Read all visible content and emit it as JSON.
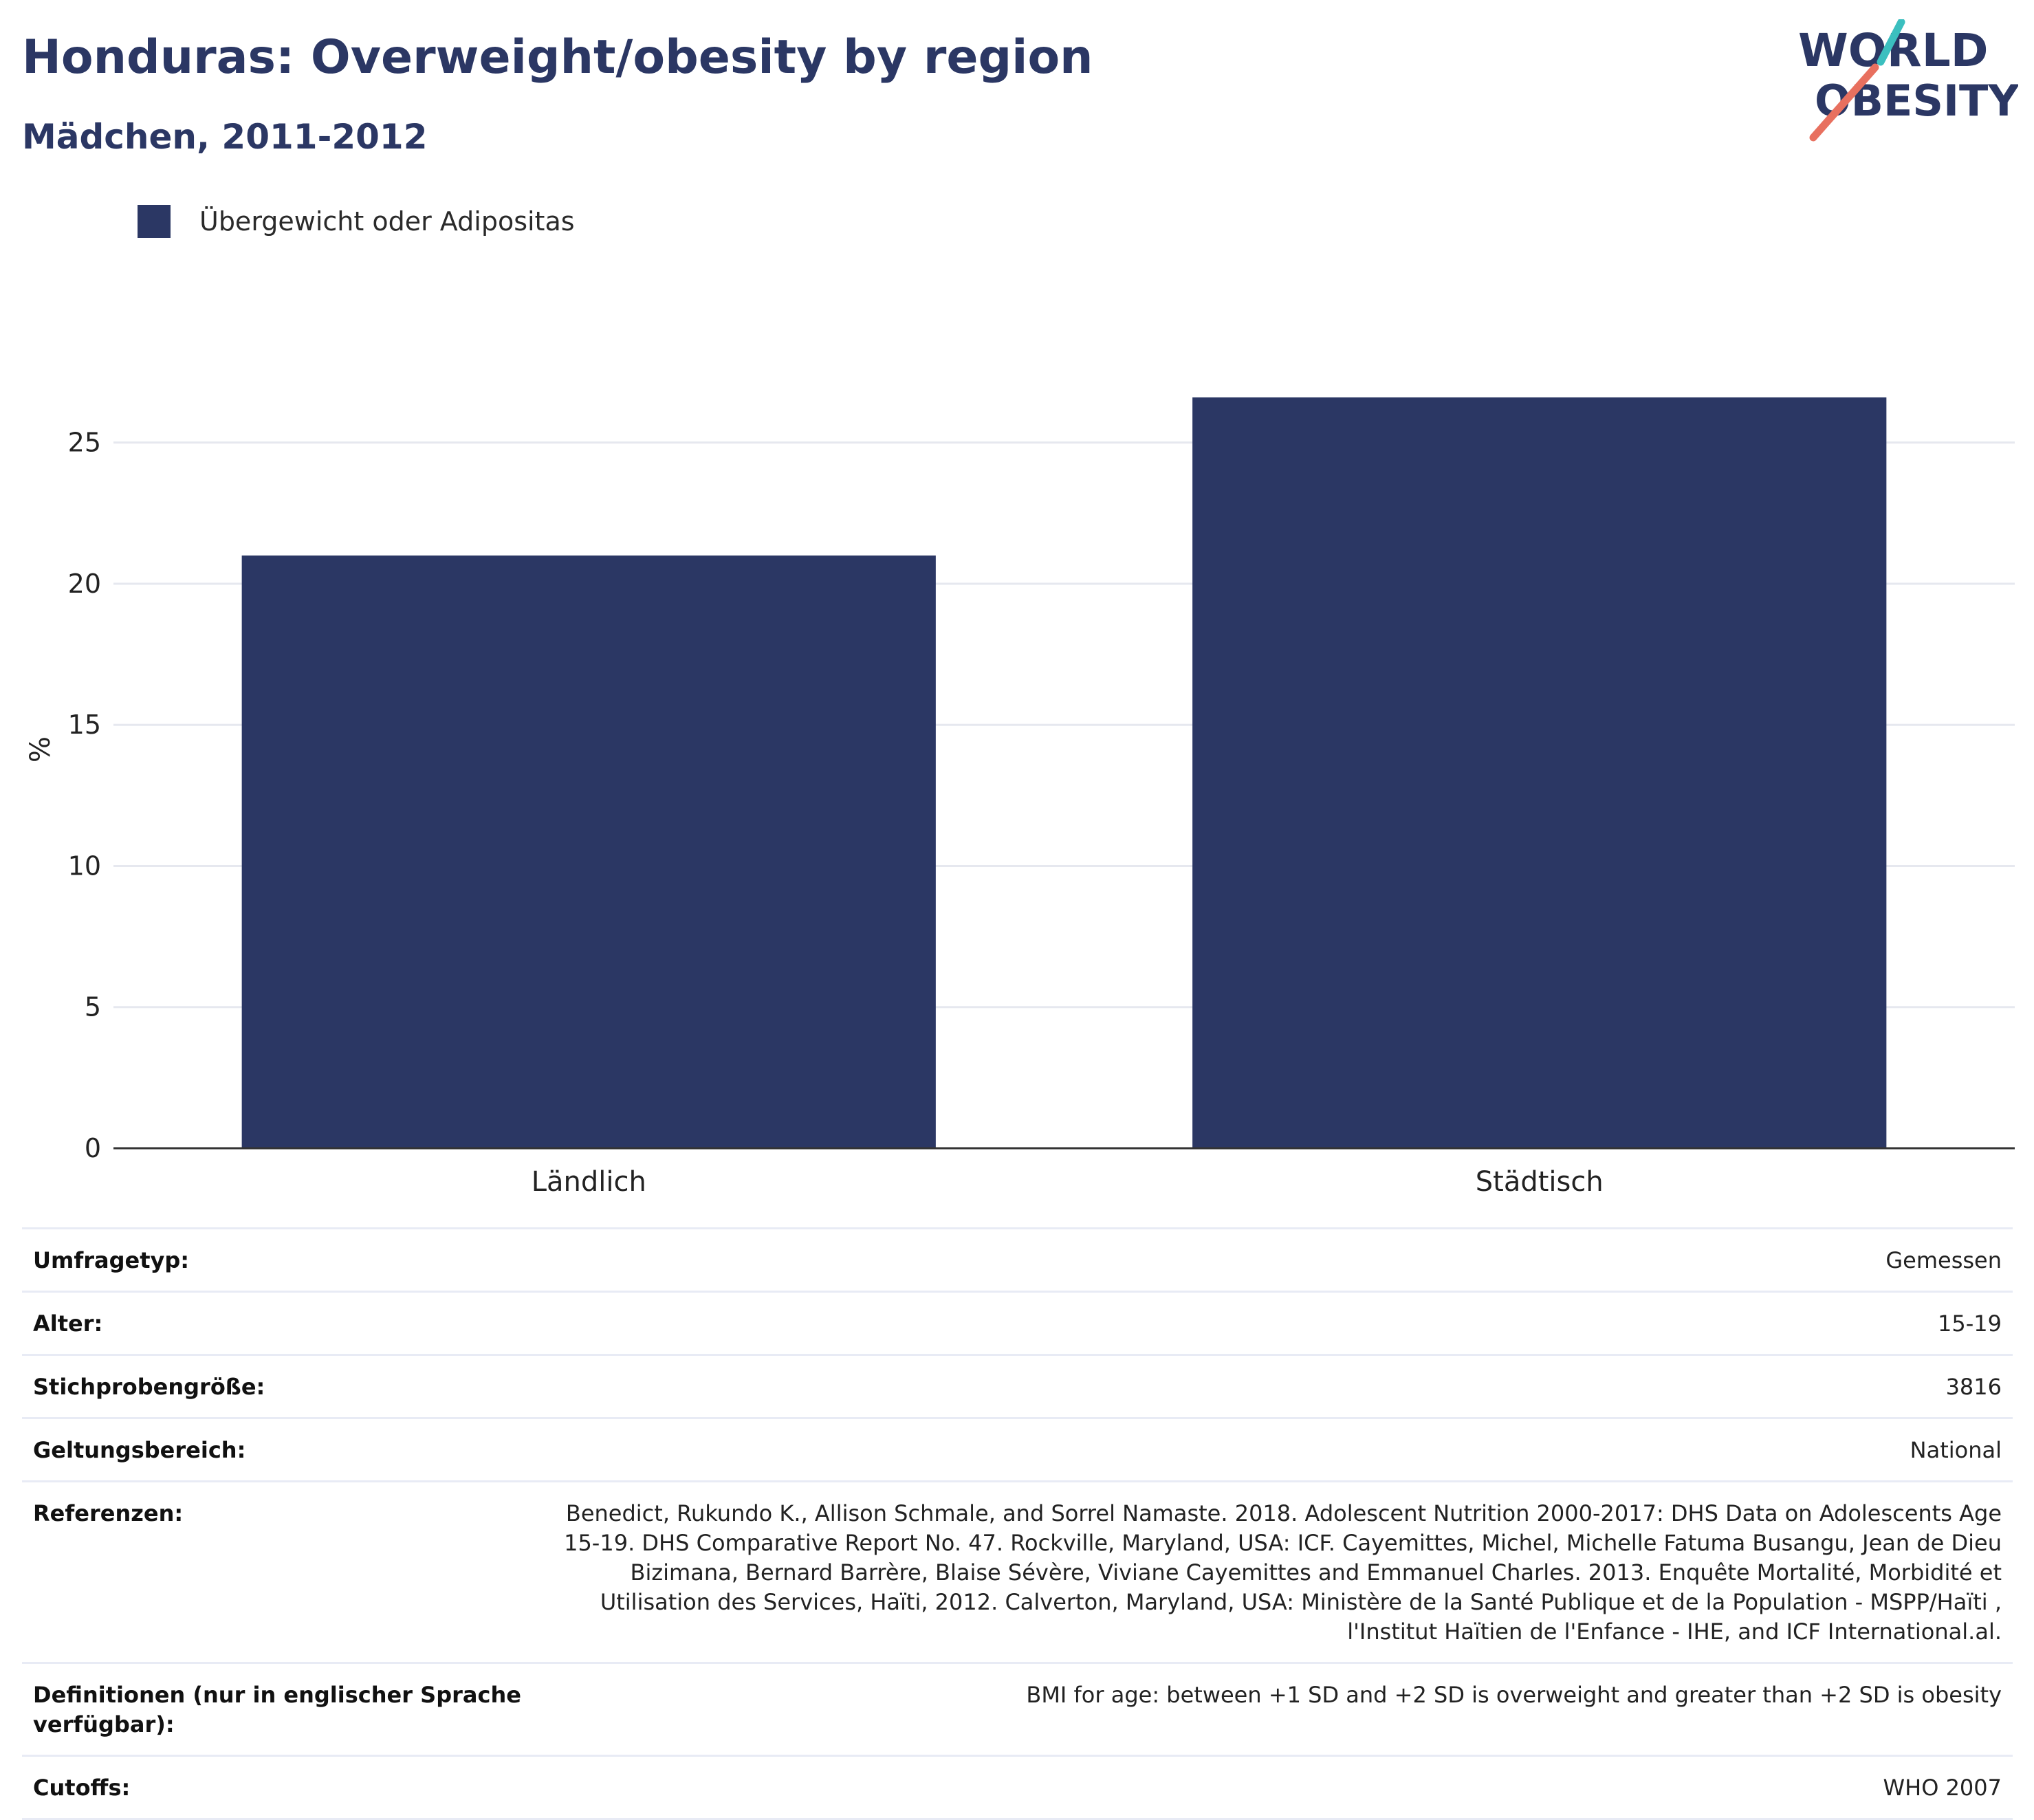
{
  "header": {
    "title": "Honduras: Overweight/obesity by region",
    "subtitle": "Mädchen, 2011-2012"
  },
  "logo": {
    "line1": "WORLD",
    "line2": "OBESITY",
    "colors": {
      "text": "#2b3764",
      "slash_red": "#e8705f",
      "slash_teal": "#3bbfbf"
    }
  },
  "colors": {
    "bar": "#2b3764",
    "grid": "#e6e8ef",
    "axis": "#333333"
  },
  "chart_data": {
    "type": "bar",
    "categories": [
      "Ländlich",
      "Städtisch"
    ],
    "series": [
      {
        "name": "Übergewicht oder Adipositas",
        "values": [
          21.0,
          26.6
        ]
      }
    ],
    "ylabel": "%",
    "yticks": [
      0,
      5,
      10,
      15,
      20,
      25
    ],
    "ylim": [
      0,
      28.5
    ],
    "grid": true,
    "legend": "top-left"
  },
  "info": [
    {
      "label": "Umfragetyp:",
      "value": "Gemessen"
    },
    {
      "label": "Alter:",
      "value": "15-19"
    },
    {
      "label": "Stichprobengröße:",
      "value": "3816"
    },
    {
      "label": "Geltungsbereich:",
      "value": "National"
    },
    {
      "label": "Referenzen:",
      "value": "Benedict, Rukundo K., Allison Schmale, and Sorrel Namaste. 2018. Adolescent Nutrition 2000-2017: DHS Data on Adolescents Age 15-19. DHS Comparative Report No. 47. Rockville, Maryland, USA: ICF. Cayemittes, Michel, Michelle Fatuma Busangu, Jean de Dieu Bizimana, Bernard Barrère, Blaise Sévère, Viviane Cayemittes and Emmanuel Charles. 2013. Enquête Mortalité, Morbidité et Utilisation des Services, Haïti, 2012. Calverton, Maryland, USA: Ministère de la Santé Publique et de la Population - MSPP/Haïti , l'Institut Haïtien de l'Enfance - IHE, and ICF International.al."
    },
    {
      "label": "Definitionen (nur in englischer Sprache verfügbar):",
      "value": "BMI for age: between +1 SD and +2 SD is overweight and greater than +2 SD is obesity"
    },
    {
      "label": "Cutoffs:",
      "value": "WHO 2007"
    }
  ]
}
